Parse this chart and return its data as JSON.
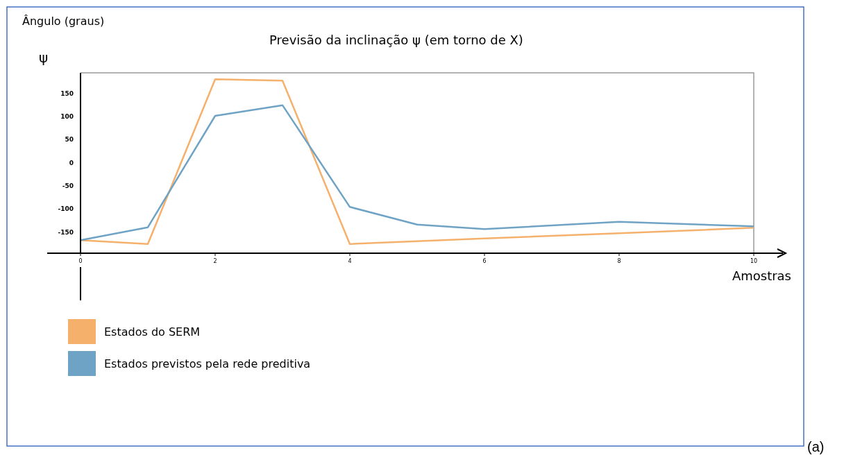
{
  "chart_data": {
    "type": "line",
    "title": "Previsão da inclinação ψ (em torno de X)",
    "xlabel": "Amostras",
    "ylabel": "Ângulo (graus)",
    "annotations": [
      "ψ",
      "(a)"
    ],
    "xlim": [
      0,
      10
    ],
    "xticks": [
      0,
      2,
      4,
      6,
      8,
      10
    ],
    "ylim": [
      -195,
      195
    ],
    "yticks": [
      150,
      100,
      50,
      0,
      -50,
      -100,
      -150
    ],
    "grid": false,
    "legend": "bottom left",
    "marker": "none",
    "line_style": "solid",
    "series": [
      {
        "name": "Estados do SERM",
        "color": "#f5b06c",
        "x": [
          0,
          1,
          2,
          3,
          4,
          6,
          8,
          10
        ],
        "values": [
          -167,
          -175,
          181,
          178,
          -175,
          -163,
          -152,
          -140
        ]
      },
      {
        "name": "Estados previstos pela rede preditiva",
        "color": "#6fa3c5",
        "x": [
          0,
          1,
          2,
          3,
          4,
          5,
          6,
          8,
          10
        ],
        "values": [
          -167,
          -139,
          102,
          125,
          -95,
          -133,
          -143,
          -127,
          -137
        ]
      }
    ]
  }
}
